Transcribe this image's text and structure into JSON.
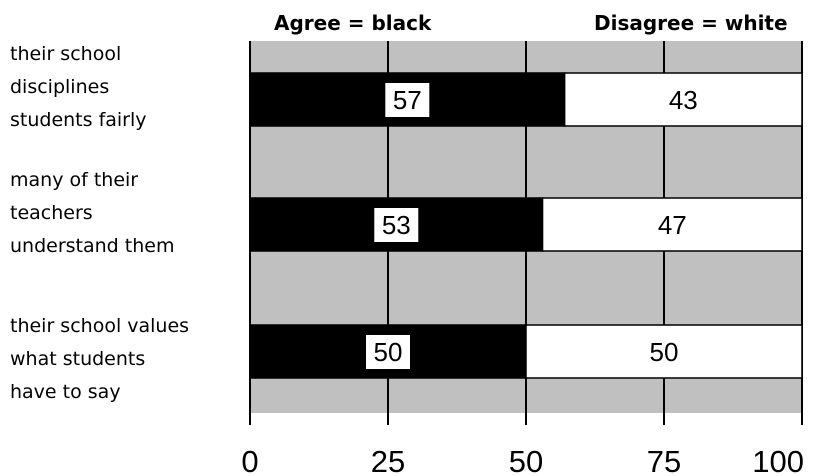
{
  "chart_data": {
    "type": "bar",
    "stacked": true,
    "orientation": "horizontal",
    "title": "",
    "xlabel": "",
    "ylabel": "",
    "xlim": [
      0,
      100
    ],
    "x_ticks": [
      "0",
      "25",
      "50",
      "75",
      "100"
    ],
    "grid": true,
    "legend_placement": "top",
    "categories": [
      [
        "their school",
        "disciplines",
        "students fairly"
      ],
      [
        "many of their",
        "teachers",
        "understand them"
      ],
      [
        "their school values",
        "what students",
        "have to say"
      ]
    ],
    "series": [
      {
        "name": "Agree = black",
        "color": "#000000",
        "values": [
          57,
          53,
          50
        ]
      },
      {
        "name": "Disagree = white",
        "color": "#ffffff",
        "values": [
          43,
          47,
          50
        ]
      }
    ],
    "plot_background": "#c0c0c0"
  }
}
